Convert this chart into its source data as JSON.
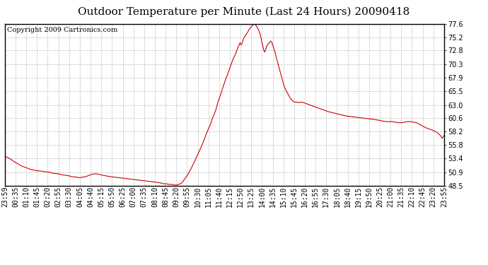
{
  "title": "Outdoor Temperature per Minute (Last 24 Hours) 20090418",
  "copyright_text": "Copyright 2009 Cartronics.com",
  "line_color": "#cc0000",
  "background_color": "#ffffff",
  "grid_color": "#bbbbbb",
  "yticks": [
    48.5,
    50.9,
    53.4,
    55.8,
    58.2,
    60.6,
    63.0,
    65.5,
    67.9,
    70.3,
    72.8,
    75.2,
    77.6
  ],
  "xtick_labels": [
    "23:59",
    "00:35",
    "01:10",
    "01:45",
    "02:20",
    "02:55",
    "03:30",
    "04:05",
    "04:40",
    "05:15",
    "05:50",
    "06:25",
    "07:00",
    "07:35",
    "08:10",
    "08:45",
    "09:20",
    "09:55",
    "10:30",
    "11:05",
    "11:40",
    "12:15",
    "12:50",
    "13:25",
    "14:00",
    "14:35",
    "15:10",
    "15:45",
    "16:20",
    "16:55",
    "17:30",
    "18:05",
    "18:40",
    "19:15",
    "19:50",
    "20:25",
    "21:00",
    "21:35",
    "22:10",
    "22:45",
    "23:20",
    "23:55"
  ],
  "ymin": 48.5,
  "ymax": 77.6,
  "title_fontsize": 11,
  "copyright_fontsize": 7,
  "tick_fontsize": 7,
  "curve_data": [
    [
      0,
      53.8
    ],
    [
      10,
      53.5
    ],
    [
      20,
      53.2
    ],
    [
      30,
      52.8
    ],
    [
      40,
      52.5
    ],
    [
      55,
      52.0
    ],
    [
      70,
      51.7
    ],
    [
      85,
      51.4
    ],
    [
      100,
      51.2
    ],
    [
      115,
      51.1
    ],
    [
      130,
      51.0
    ],
    [
      145,
      50.9
    ],
    [
      160,
      50.7
    ],
    [
      175,
      50.6
    ],
    [
      190,
      50.4
    ],
    [
      205,
      50.3
    ],
    [
      220,
      50.1
    ],
    [
      235,
      50.0
    ],
    [
      245,
      49.9
    ],
    [
      255,
      50.0
    ],
    [
      265,
      50.1
    ],
    [
      275,
      50.3
    ],
    [
      285,
      50.5
    ],
    [
      292,
      50.6
    ],
    [
      300,
      50.6
    ],
    [
      308,
      50.5
    ],
    [
      315,
      50.4
    ],
    [
      325,
      50.3
    ],
    [
      335,
      50.2
    ],
    [
      345,
      50.1
    ],
    [
      360,
      50.0
    ],
    [
      375,
      49.9
    ],
    [
      390,
      49.8
    ],
    [
      405,
      49.7
    ],
    [
      420,
      49.6
    ],
    [
      435,
      49.5
    ],
    [
      450,
      49.4
    ],
    [
      465,
      49.3
    ],
    [
      480,
      49.2
    ],
    [
      495,
      49.1
    ],
    [
      507,
      49.0
    ],
    [
      515,
      48.9
    ],
    [
      522,
      48.8
    ],
    [
      530,
      48.8
    ],
    [
      538,
      48.7
    ],
    [
      545,
      48.7
    ],
    [
      552,
      48.6
    ],
    [
      558,
      48.6
    ],
    [
      565,
      48.6
    ],
    [
      570,
      48.7
    ],
    [
      575,
      48.8
    ],
    [
      578,
      48.9
    ],
    [
      582,
      49.1
    ],
    [
      590,
      49.7
    ],
    [
      600,
      50.5
    ],
    [
      610,
      51.5
    ],
    [
      620,
      52.6
    ],
    [
      630,
      53.8
    ],
    [
      640,
      55.0
    ],
    [
      648,
      56.0
    ],
    [
      655,
      57.0
    ],
    [
      662,
      58.0
    ],
    [
      668,
      58.8
    ],
    [
      674,
      59.5
    ],
    [
      680,
      60.5
    ],
    [
      686,
      61.3
    ],
    [
      691,
      62.0
    ],
    [
      695,
      62.8
    ],
    [
      700,
      63.8
    ],
    [
      705,
      64.5
    ],
    [
      710,
      65.3
    ],
    [
      715,
      66.2
    ],
    [
      720,
      67.0
    ],
    [
      725,
      67.8
    ],
    [
      730,
      68.5
    ],
    [
      735,
      69.3
    ],
    [
      740,
      70.0
    ],
    [
      745,
      70.8
    ],
    [
      750,
      71.5
    ],
    [
      755,
      72.0
    ],
    [
      758,
      72.5
    ],
    [
      762,
      73.0
    ],
    [
      765,
      73.5
    ],
    [
      768,
      73.8
    ],
    [
      771,
      74.2
    ],
    [
      774,
      73.8
    ],
    [
      777,
      74.0
    ],
    [
      780,
      74.5
    ],
    [
      783,
      75.0
    ],
    [
      786,
      75.3
    ],
    [
      789,
      75.5
    ],
    [
      792,
      75.8
    ],
    [
      795,
      76.0
    ],
    [
      798,
      76.3
    ],
    [
      801,
      76.6
    ],
    [
      804,
      76.8
    ],
    [
      807,
      77.0
    ],
    [
      810,
      77.2
    ],
    [
      813,
      77.4
    ],
    [
      816,
      77.5
    ],
    [
      819,
      77.6
    ],
    [
      822,
      77.4
    ],
    [
      825,
      77.2
    ],
    [
      828,
      76.9
    ],
    [
      831,
      76.6
    ],
    [
      834,
      76.2
    ],
    [
      837,
      75.7
    ],
    [
      840,
      75.0
    ],
    [
      843,
      74.2
    ],
    [
      846,
      73.5
    ],
    [
      849,
      72.8
    ],
    [
      852,
      72.5
    ],
    [
      855,
      73.0
    ],
    [
      858,
      73.5
    ],
    [
      861,
      73.8
    ],
    [
      864,
      74.0
    ],
    [
      867,
      74.2
    ],
    [
      870,
      74.4
    ],
    [
      872,
      74.5
    ],
    [
      874,
      74.4
    ],
    [
      876,
      74.2
    ],
    [
      878,
      73.8
    ],
    [
      881,
      73.3
    ],
    [
      884,
      72.8
    ],
    [
      887,
      72.2
    ],
    [
      890,
      71.5
    ],
    [
      895,
      70.5
    ],
    [
      900,
      69.5
    ],
    [
      905,
      68.5
    ],
    [
      910,
      67.5
    ],
    [
      915,
      66.5
    ],
    [
      920,
      65.8
    ],
    [
      925,
      65.3
    ],
    [
      930,
      64.8
    ],
    [
      935,
      64.3
    ],
    [
      940,
      63.9
    ],
    [
      945,
      63.7
    ],
    [
      950,
      63.5
    ],
    [
      955,
      63.5
    ],
    [
      960,
      63.5
    ],
    [
      965,
      63.4
    ],
    [
      970,
      63.5
    ],
    [
      975,
      63.5
    ],
    [
      980,
      63.4
    ],
    [
      985,
      63.3
    ],
    [
      990,
      63.2
    ],
    [
      995,
      63.1
    ],
    [
      1000,
      63.0
    ],
    [
      1010,
      62.8
    ],
    [
      1020,
      62.6
    ],
    [
      1030,
      62.4
    ],
    [
      1045,
      62.1
    ],
    [
      1060,
      61.8
    ],
    [
      1075,
      61.6
    ],
    [
      1090,
      61.4
    ],
    [
      1105,
      61.2
    ],
    [
      1120,
      61.0
    ],
    [
      1135,
      60.9
    ],
    [
      1150,
      60.8
    ],
    [
      1165,
      60.7
    ],
    [
      1180,
      60.6
    ],
    [
      1195,
      60.5
    ],
    [
      1210,
      60.4
    ],
    [
      1220,
      60.3
    ],
    [
      1230,
      60.2
    ],
    [
      1240,
      60.1
    ],
    [
      1250,
      60.0
    ],
    [
      1260,
      60.0
    ],
    [
      1270,
      60.0
    ],
    [
      1280,
      59.9
    ],
    [
      1290,
      59.8
    ],
    [
      1300,
      59.8
    ],
    [
      1310,
      59.9
    ],
    [
      1320,
      60.0
    ],
    [
      1330,
      60.0
    ],
    [
      1340,
      59.9
    ],
    [
      1350,
      59.8
    ],
    [
      1360,
      59.5
    ],
    [
      1370,
      59.2
    ],
    [
      1380,
      58.9
    ],
    [
      1390,
      58.7
    ],
    [
      1400,
      58.5
    ],
    [
      1408,
      58.3
    ],
    [
      1415,
      58.1
    ],
    [
      1422,
      57.8
    ],
    [
      1428,
      57.5
    ],
    [
      1434,
      57.0
    ],
    [
      1440,
      57.5
    ]
  ]
}
